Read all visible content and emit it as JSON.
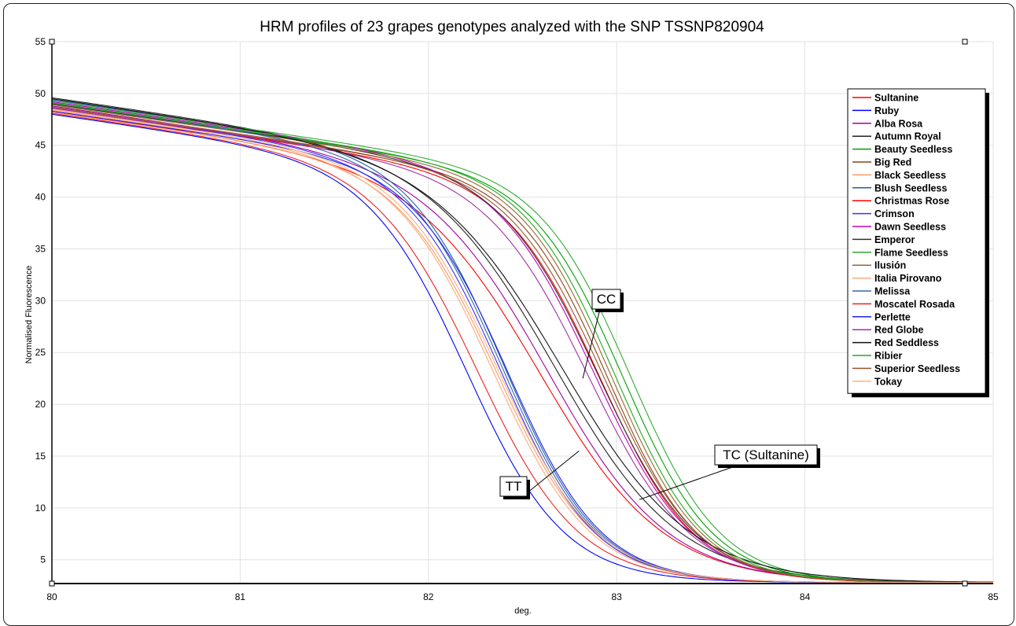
{
  "chart_data": {
    "type": "line",
    "title": "HRM profiles of 23 grapes genotypes analyzed with the SNP TSSNP820904",
    "xlabel": "deg.",
    "ylabel": "Normalised Fluorescence",
    "xlim": [
      80,
      85
    ],
    "ylim": [
      2.7,
      55
    ],
    "xticks": [
      "80",
      "81",
      "82",
      "83",
      "84",
      "85"
    ],
    "yticks": [
      "5",
      "10",
      "15",
      "20",
      "25",
      "30",
      "35",
      "40",
      "45",
      "50",
      "55"
    ],
    "grid": true,
    "legend_position": "right",
    "series": [
      {
        "name": "Sultanine",
        "color": "#ff0000",
        "genotype": "TC",
        "start": 48.3,
        "tm": 82.62,
        "w": 0.33
      },
      {
        "name": "Ruby",
        "color": "#0000ff",
        "genotype": "TT",
        "start": 48.0,
        "tm": 82.22,
        "w": 0.26
      },
      {
        "name": "Alba Rosa",
        "color": "#a000a0",
        "genotype": "TC",
        "start": 48.8,
        "tm": 82.66,
        "w": 0.32
      },
      {
        "name": "Autumn Royal",
        "color": "#222222",
        "genotype": "TC",
        "start": 49.6,
        "tm": 82.7,
        "w": 0.33
      },
      {
        "name": "Beauty Seedless",
        "color": "#00a000",
        "genotype": "CC",
        "start": 49.0,
        "tm": 83.05,
        "w": 0.24
      },
      {
        "name": "Big Red",
        "color": "#8b4513",
        "genotype": "CC",
        "start": 48.6,
        "tm": 82.97,
        "w": 0.24
      },
      {
        "name": "Black Seedless",
        "color": "#ff9966",
        "genotype": "TT",
        "start": 48.2,
        "tm": 82.38,
        "w": 0.26
      },
      {
        "name": "Blush Seedless",
        "color": "#1f5fa8",
        "genotype": "TT",
        "start": 49.4,
        "tm": 82.42,
        "w": 0.25
      },
      {
        "name": "Christmas Rose",
        "color": "#ff0000",
        "genotype": "CC",
        "start": 48.5,
        "tm": 82.93,
        "w": 0.25
      },
      {
        "name": "Crimson",
        "color": "#3333ff",
        "genotype": "TT",
        "start": 48.6,
        "tm": 82.4,
        "w": 0.25
      },
      {
        "name": "Dawn Seedless",
        "color": "#c000c0",
        "genotype": "CC",
        "start": 49.2,
        "tm": 82.9,
        "w": 0.26
      },
      {
        "name": "Emperor",
        "color": "#333333",
        "genotype": "CC",
        "start": 49.0,
        "tm": 82.92,
        "w": 0.26
      },
      {
        "name": "Flame Seedless",
        "color": "#33aa33",
        "genotype": "CC",
        "start": 49.3,
        "tm": 83.09,
        "w": 0.24
      },
      {
        "name": "Ilusión",
        "color": "#996633",
        "genotype": "CC",
        "start": 48.9,
        "tm": 82.99,
        "w": 0.24
      },
      {
        "name": "Italia Pirovano",
        "color": "#ffaa77",
        "genotype": "TT",
        "start": 48.4,
        "tm": 82.36,
        "w": 0.26
      },
      {
        "name": "Melissa",
        "color": "#3366aa",
        "genotype": "TT",
        "start": 49.1,
        "tm": 82.41,
        "w": 0.25
      },
      {
        "name": "Moscatel Rosada",
        "color": "#ee2222",
        "genotype": "TT",
        "start": 48.1,
        "tm": 82.28,
        "w": 0.27
      },
      {
        "name": "Perlette",
        "color": "#2222ee",
        "genotype": "TT",
        "start": 48.3,
        "tm": 82.44,
        "w": 0.25
      },
      {
        "name": "Red Globe",
        "color": "#a030a0",
        "genotype": "CC",
        "start": 48.6,
        "tm": 82.87,
        "w": 0.27
      },
      {
        "name": "Red Seddless",
        "color": "#111111",
        "genotype": "TC",
        "start": 49.5,
        "tm": 82.74,
        "w": 0.34
      },
      {
        "name": "Ribier",
        "color": "#22aa22",
        "genotype": "CC",
        "start": 49.1,
        "tm": 83.01,
        "w": 0.24
      },
      {
        "name": "Superior Seedless",
        "color": "#a0522d",
        "genotype": "CC",
        "start": 48.7,
        "tm": 82.95,
        "w": 0.25
      },
      {
        "name": "Tokay",
        "color": "#ffb080",
        "genotype": "TT",
        "start": 48.5,
        "tm": 82.39,
        "w": 0.26
      }
    ],
    "annotations": [
      {
        "label": "CC",
        "target_x": 82.82,
        "target_y": 22.5
      },
      {
        "label": "TC (Sultanine)",
        "target_x": 83.12,
        "target_y": 10.8
      },
      {
        "label": "TT",
        "target_x": 82.8,
        "target_y": 15.5
      }
    ]
  }
}
